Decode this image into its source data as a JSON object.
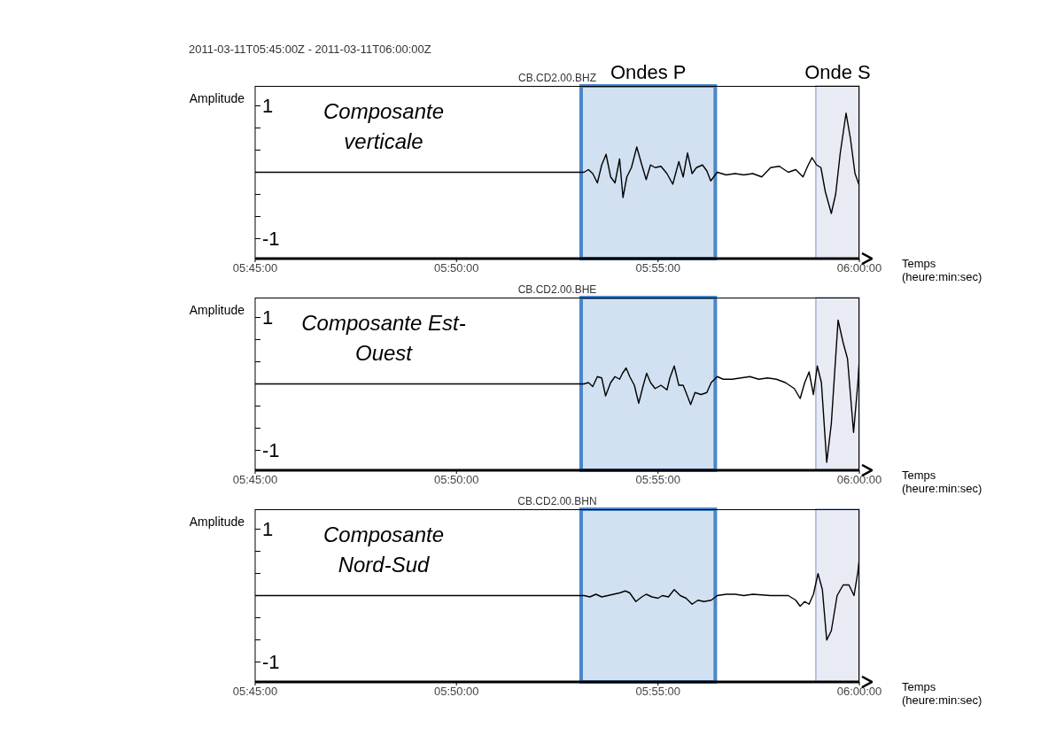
{
  "chart_data": [
    {
      "type": "line",
      "title": "2011-03-11T05:45:00Z - 2011-03-11T06:00:00Z",
      "subtitle": "CB.CD2.00.BHZ",
      "ylabel": "Amplitude",
      "xlabel": "Temps (heure:min:sec)",
      "annotations": [
        "Composante verticale"
      ],
      "x": [
        5.75,
        5.8836,
        5.8861,
        5.8879,
        5.8897,
        5.8916,
        5.8934,
        5.8952,
        5.8971,
        5.8989,
        5.9008,
        5.9022,
        5.9038,
        5.9057,
        5.9079,
        5.91,
        5.9118,
        5.9136,
        5.9155,
        5.9179,
        5.9204,
        5.9228,
        5.9253,
        5.9271,
        5.9289,
        5.9308,
        5.9326,
        5.9351,
        5.9369,
        5.9385,
        5.9412,
        5.9449,
        5.9486,
        5.9522,
        5.9559,
        5.9596,
        5.9633,
        5.9669,
        5.9706,
        5.9737,
        5.9767,
        5.9786,
        5.9804,
        5.9823,
        5.9841,
        5.9859,
        5.9884,
        5.9902,
        5.9921,
        5.9945,
        5.9963,
        5.9982,
        6.0
      ],
      "values": [
        0,
        0,
        0,
        0.04,
        -0.02,
        -0.16,
        0.11,
        0.27,
        -0.07,
        -0.16,
        0.2,
        -0.38,
        -0.07,
        0.07,
        0.38,
        0.11,
        -0.11,
        0.11,
        0.07,
        0.09,
        -0.02,
        -0.18,
        0.16,
        -0.07,
        0.29,
        -0.02,
        0.07,
        0.11,
        0.02,
        -0.13,
        0,
        -0.04,
        -0.02,
        -0.04,
        -0.02,
        -0.07,
        0.07,
        0.09,
        0,
        0.04,
        -0.07,
        0.09,
        0.22,
        0.11,
        0.07,
        -0.29,
        -0.62,
        -0.33,
        0.29,
        0.89,
        0.51,
        -0.02,
        -0.2
      ],
      "color": "#000000",
      "xlim": [
        5.75,
        6.0
      ],
      "xticks": [
        {
          "value": 5.75,
          "label": "05:45:00"
        },
        {
          "value": 5.8333,
          "label": "05:50:00"
        },
        {
          "value": 5.9167,
          "label": "05:55:00"
        },
        {
          "value": 6.0,
          "label": "06:00:00"
        }
      ],
      "ylim": [
        -1.3,
        1.3
      ],
      "yticks": [
        {
          "value": -1,
          "label": "-1"
        },
        {
          "value": -0.6667,
          "label": null
        },
        {
          "value": -0.3333,
          "label": null
        },
        {
          "value": 0,
          "label": null
        },
        {
          "value": 0.3333,
          "label": null
        },
        {
          "value": 0.6667,
          "label": null
        },
        {
          "value": 1,
          "label": "1"
        }
      ],
      "bands": [
        {
          "axis": "x",
          "from": 5.8849,
          "to": 5.9404,
          "label": "Ondes P",
          "color": "#4a86c8"
        },
        {
          "axis": "x",
          "from": 5.982,
          "to": 6.0,
          "label": "Onde S",
          "color": "#a8b0d4"
        }
      ]
    },
    {
      "type": "line",
      "subtitle": "CB.CD2.00.BHE",
      "ylabel": "Amplitude",
      "xlabel": "Temps (heure:min:sec)",
      "annotations": [
        "Composante Est-Ouest"
      ],
      "x": [
        5.75,
        5.8836,
        5.8861,
        5.8879,
        5.8897,
        5.8916,
        5.8934,
        5.895,
        5.8971,
        5.8989,
        5.9008,
        5.902,
        5.9035,
        5.905,
        5.9069,
        5.9087,
        5.9106,
        5.912,
        5.9136,
        5.9155,
        5.9179,
        5.9204,
        5.9216,
        5.9234,
        5.9253,
        5.9271,
        5.9283,
        5.9302,
        5.932,
        5.9345,
        5.9369,
        5.9387,
        5.9412,
        5.9437,
        5.9473,
        5.951,
        5.9547,
        5.9584,
        5.962,
        5.9657,
        5.9694,
        5.9731,
        5.9755,
        5.9774,
        5.9792,
        5.981,
        5.9826,
        5.9843,
        5.9865,
        5.9884,
        5.9912,
        5.9933,
        5.9951,
        5.9976,
        5.9994,
        6.0
      ],
      "values": [
        0,
        0,
        0,
        0.02,
        -0.04,
        0.11,
        0.09,
        -0.18,
        0.02,
        0.11,
        0.07,
        0.16,
        0.24,
        0.11,
        -0.02,
        -0.29,
        -0.02,
        0.16,
        0.02,
        -0.07,
        -0.02,
        -0.09,
        0.09,
        0.27,
        -0.02,
        -0.02,
        -0.13,
        -0.31,
        -0.13,
        -0.16,
        -0.13,
        0.02,
        0.11,
        0.07,
        0.07,
        0.09,
        0.11,
        0.07,
        0.09,
        0.07,
        0.02,
        -0.07,
        -0.22,
        0.02,
        0.18,
        -0.16,
        0.27,
        0.02,
        -1.18,
        -0.6,
        0.96,
        0.62,
        0.38,
        -0.73,
        0.02,
        0.38
      ],
      "color": "#000000",
      "xlim": [
        5.75,
        6.0
      ],
      "xticks": [
        {
          "value": 5.75,
          "label": "05:45:00"
        },
        {
          "value": 5.8333,
          "label": "05:50:00"
        },
        {
          "value": 5.9167,
          "label": "05:55:00"
        },
        {
          "value": 6.0,
          "label": "06:00:00"
        }
      ],
      "ylim": [
        -1.3,
        1.3
      ],
      "yticks": [
        {
          "value": -1,
          "label": "-1"
        },
        {
          "value": -0.6667,
          "label": null
        },
        {
          "value": -0.3333,
          "label": null
        },
        {
          "value": 0,
          "label": null
        },
        {
          "value": 0.3333,
          "label": null
        },
        {
          "value": 0.6667,
          "label": null
        },
        {
          "value": 1,
          "label": "1"
        }
      ],
      "bands": [
        {
          "axis": "x",
          "from": 5.8849,
          "to": 5.9404,
          "color": "#4a86c8"
        },
        {
          "axis": "x",
          "from": 5.982,
          "to": 6.0,
          "color": "#a8b0d4"
        }
      ]
    },
    {
      "type": "line",
      "subtitle": "CB.CD2.00.BHN",
      "ylabel": "Amplitude",
      "xlabel": "Temps (heure:min:sec)",
      "annotations": [
        "Composante Nord-Sud"
      ],
      "x": [
        5.75,
        5.8836,
        5.8861,
        5.8885,
        5.891,
        5.8934,
        5.8959,
        5.8983,
        5.9008,
        5.9032,
        5.905,
        5.9075,
        5.91,
        5.9118,
        5.9142,
        5.9167,
        5.9185,
        5.921,
        5.9234,
        5.9259,
        5.9283,
        5.9308,
        5.9332,
        5.9357,
        5.9387,
        5.9412,
        5.9449,
        5.9486,
        5.9522,
        5.9559,
        5.9596,
        5.9633,
        5.9669,
        5.9706,
        5.9737,
        5.9755,
        5.9774,
        5.9792,
        5.981,
        5.9829,
        5.9847,
        5.9865,
        5.9884,
        5.9908,
        5.9933,
        5.9957,
        5.9978,
        5.9994,
        6.0
      ],
      "values": [
        0,
        0,
        0,
        -0.02,
        0.02,
        -0.02,
        0,
        0.02,
        0.04,
        0.07,
        0.04,
        -0.09,
        -0.02,
        0.02,
        -0.02,
        -0.04,
        0,
        -0.02,
        0.09,
        0,
        -0.04,
        -0.13,
        -0.07,
        -0.09,
        -0.07,
        0,
        0.02,
        0.02,
        0,
        0.02,
        0.01,
        0,
        0,
        0,
        -0.07,
        -0.16,
        -0.09,
        -0.13,
        0.02,
        0.33,
        0.09,
        -0.67,
        -0.53,
        0,
        0.16,
        0.16,
        0,
        0.36,
        0.56
      ],
      "color": "#000000",
      "xlim": [
        5.75,
        6.0
      ],
      "xticks": [
        {
          "value": 5.75,
          "label": "05:45:00"
        },
        {
          "value": 5.8333,
          "label": "05:50:00"
        },
        {
          "value": 5.9167,
          "label": "05:55:00"
        },
        {
          "value": 6.0,
          "label": "06:00:00"
        }
      ],
      "ylim": [
        -1.3,
        1.3
      ],
      "yticks": [
        {
          "value": -1,
          "label": "-1"
        },
        {
          "value": -0.6667,
          "label": null
        },
        {
          "value": -0.3333,
          "label": null
        },
        {
          "value": 0,
          "label": null
        },
        {
          "value": 0.3333,
          "label": null
        },
        {
          "value": 0.6667,
          "label": null
        },
        {
          "value": 1,
          "label": "1"
        }
      ],
      "bands": [
        {
          "axis": "x",
          "from": 5.8849,
          "to": 5.9404,
          "color": "#4a86c8"
        },
        {
          "axis": "x",
          "from": 5.982,
          "to": 6.0,
          "color": "#a8b0d4"
        }
      ]
    }
  ]
}
